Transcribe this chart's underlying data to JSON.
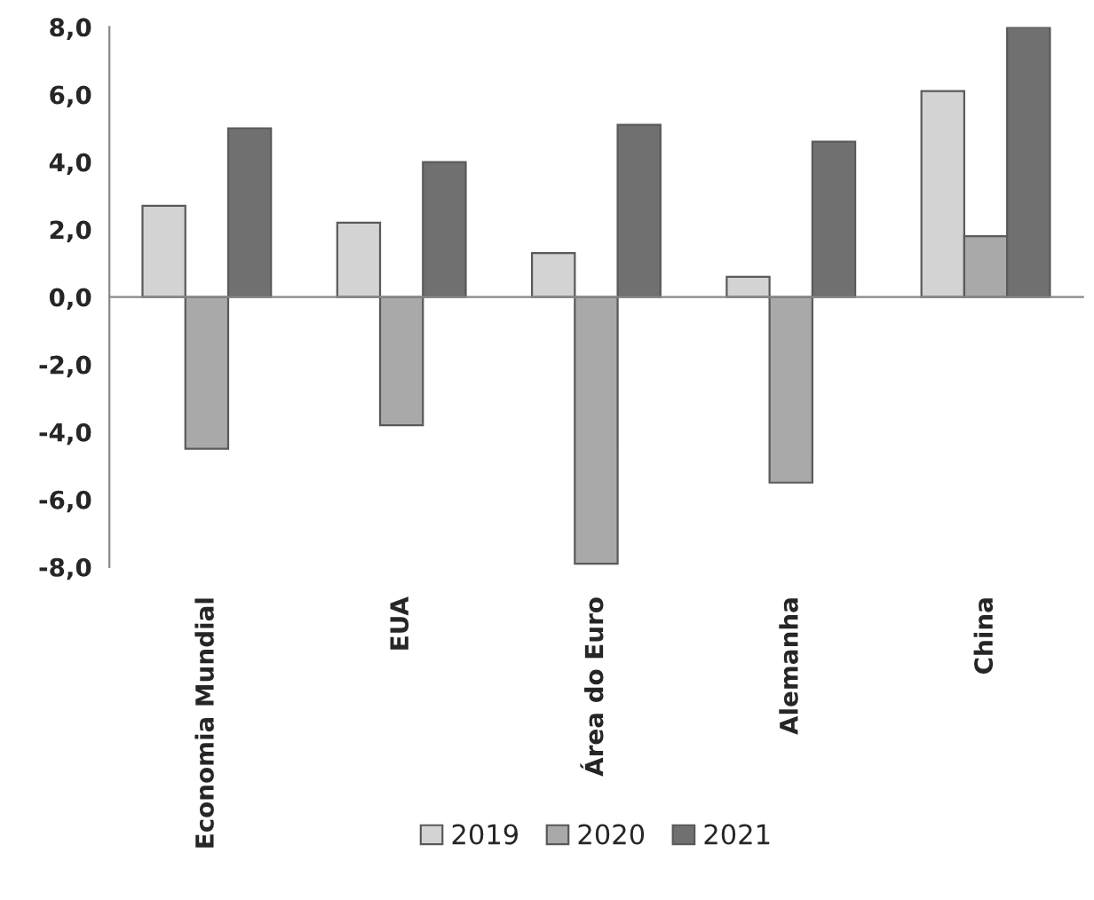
{
  "chart_data": {
    "type": "bar",
    "categories": [
      "Economia Mundial",
      "EUA",
      "Área do Euro",
      "Alemanha",
      "China"
    ],
    "series": [
      {
        "name": "2019",
        "color": "#d3d3d3",
        "values": [
          2.7,
          2.2,
          1.3,
          0.6,
          6.1
        ]
      },
      {
        "name": "2020",
        "color": "#a9a9a9",
        "values": [
          -4.5,
          -3.8,
          -7.9,
          -5.5,
          1.8
        ]
      },
      {
        "name": "2021",
        "color": "#707070",
        "values": [
          5.0,
          4.0,
          5.1,
          4.6,
          8.0
        ]
      }
    ],
    "ylim": [
      -8,
      8
    ],
    "yticks": [
      {
        "value": -8,
        "label": "-8,0"
      },
      {
        "value": -6,
        "label": "-6,0"
      },
      {
        "value": -4,
        "label": "-4,0"
      },
      {
        "value": -2,
        "label": "-2,0"
      },
      {
        "value": 0,
        "label": "0,0"
      },
      {
        "value": 2,
        "label": "2,0"
      },
      {
        "value": 4,
        "label": "4,0"
      },
      {
        "value": 6,
        "label": "6,0"
      },
      {
        "value": 8,
        "label": "8,0"
      }
    ],
    "legend": "bottom"
  }
}
